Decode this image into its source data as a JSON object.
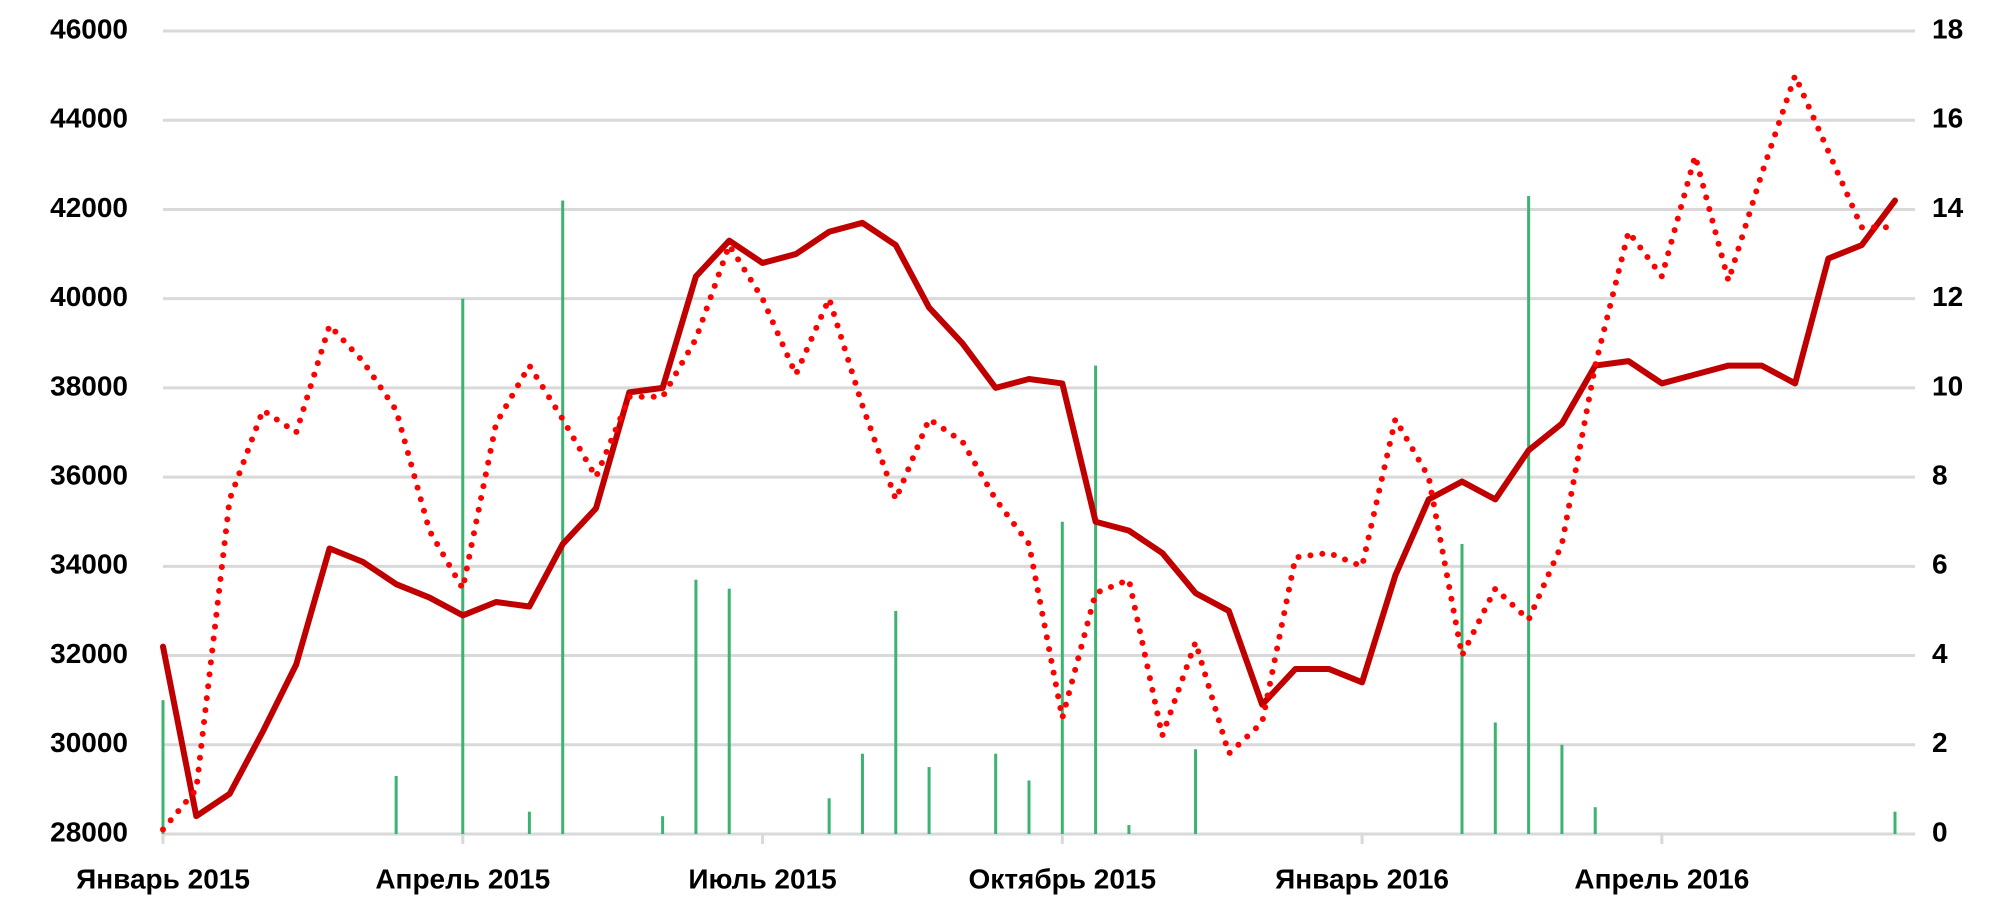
{
  "chart_data": {
    "type": "line",
    "categories": [
      "Январь 2015",
      null,
      null,
      null,
      null,
      null,
      null,
      null,
      null,
      "Апрель 2015",
      null,
      null,
      null,
      null,
      null,
      null,
      null,
      null,
      "Июль 2015",
      null,
      null,
      null,
      null,
      null,
      null,
      null,
      null,
      "Октябрь 2015",
      null,
      null,
      null,
      null,
      null,
      null,
      null,
      null,
      "Январь 2016",
      null,
      null,
      null,
      null,
      null,
      null,
      null,
      null,
      "Апрель 2016",
      null,
      null,
      null,
      null,
      null,
      null,
      null
    ],
    "series": [
      {
        "type": "line",
        "style": "solid",
        "color": "#c00000",
        "axis": "y",
        "values": [
          32200,
          28400,
          28900,
          30300,
          31800,
          34400,
          34100,
          33600,
          33300,
          32900,
          33200,
          33100,
          34500,
          35300,
          37900,
          38000,
          40500,
          41300,
          40800,
          41000,
          41500,
          41700,
          41200,
          39800,
          39000,
          38000,
          38200,
          38100,
          35000,
          34800,
          34300,
          33400,
          33000,
          30900,
          31700,
          31700,
          31400,
          33800,
          35500,
          35900,
          35500,
          36600,
          37200,
          38500,
          38600,
          38100,
          38300,
          38500,
          38500,
          38100,
          40900,
          41200,
          42200
        ]
      },
      {
        "type": "line",
        "style": "dotted",
        "color": "#ff0000",
        "axis": "y",
        "values": [
          28100,
          29000,
          35500,
          37500,
          37000,
          39400,
          38600,
          37500,
          34800,
          33500,
          37200,
          38500,
          37300,
          36000,
          37800,
          37800,
          39100,
          41200,
          40000,
          38300,
          40000,
          37600,
          35500,
          37300,
          36800,
          35500,
          34500,
          30600,
          33400,
          33700,
          30200,
          32300,
          29800,
          30500,
          34200,
          34300,
          34000,
          37300,
          36000,
          32000,
          33500,
          32800,
          34500,
          38500,
          41500,
          40500,
          43200,
          40400,
          42800,
          45000,
          43300,
          41600,
          41600
        ]
      },
      {
        "type": "bar",
        "color": "#3cb371",
        "axis": "y2",
        "values": [
          3,
          0,
          0,
          0,
          0,
          0,
          0,
          1.3,
          0,
          12,
          0,
          0.5,
          14.2,
          0,
          0,
          0.4,
          5.7,
          5.5,
          0,
          0,
          0.8,
          1.8,
          5,
          1.5,
          0,
          1.8,
          1.2,
          7,
          10.5,
          0.2,
          0,
          1.9,
          0,
          0,
          0,
          0,
          0,
          0,
          0,
          6.5,
          2.5,
          14.3,
          2,
          0.6,
          0,
          0,
          0,
          0,
          0,
          0,
          0,
          0,
          0.5
        ]
      }
    ],
    "ylim": [
      28000,
      46000
    ],
    "yticks": [
      28000,
      30000,
      32000,
      34000,
      36000,
      38000,
      40000,
      42000,
      44000,
      46000
    ],
    "y2lim": [
      0,
      18
    ],
    "y2ticks": [
      0,
      2,
      4,
      6,
      8,
      10,
      12,
      14,
      16,
      18
    ],
    "grid": true
  }
}
